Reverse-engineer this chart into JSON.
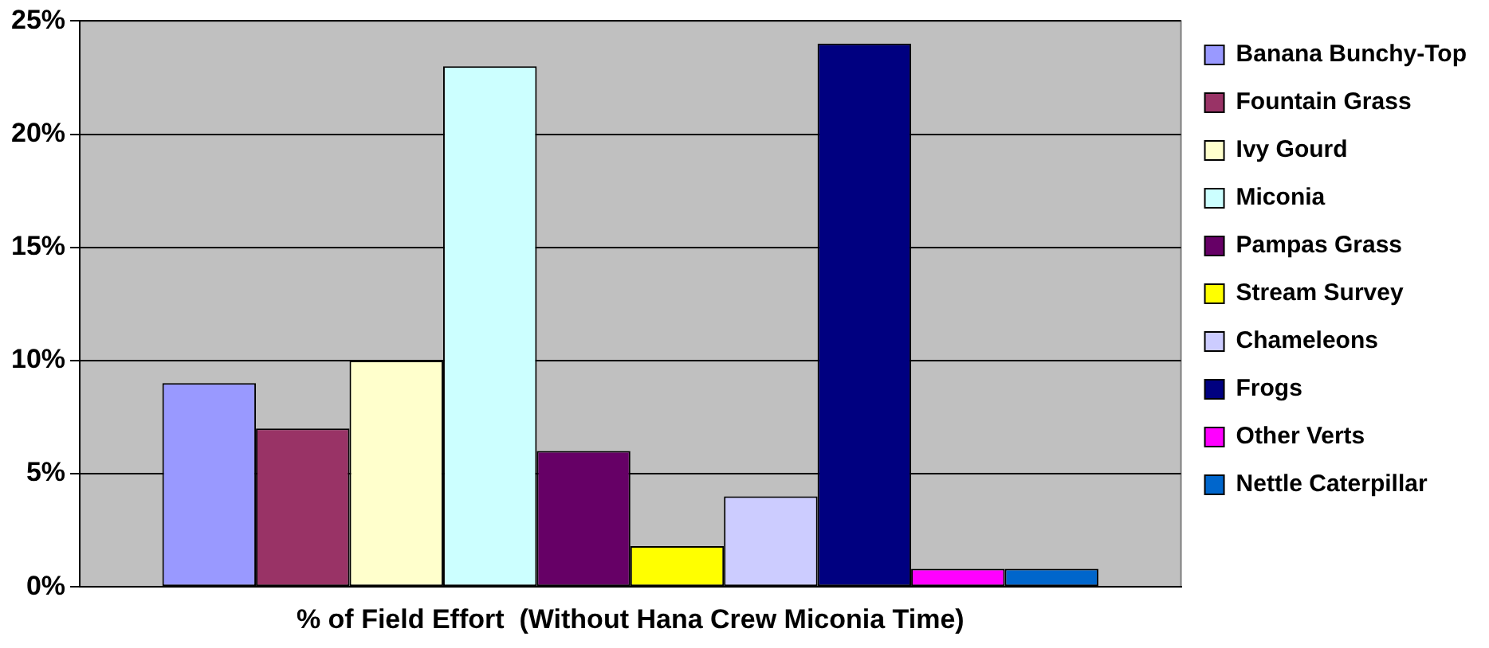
{
  "chart_data": {
    "type": "bar",
    "categories": [
      "% of Field Effort  (Without Hana Crew Miconia Time)"
    ],
    "series": [
      {
        "name": "Banana Bunchy-Top",
        "color": "#9999ff",
        "values": [
          9
        ]
      },
      {
        "name": "Fountain Grass",
        "color": "#993366",
        "values": [
          7
        ]
      },
      {
        "name": "Ivy Gourd",
        "color": "#ffffcc",
        "values": [
          10
        ]
      },
      {
        "name": "Miconia",
        "color": "#ccffff",
        "values": [
          23
        ]
      },
      {
        "name": "Pampas Grass",
        "color": "#660066",
        "values": [
          6
        ]
      },
      {
        "name": "Stream Survey",
        "color": "#ffff00",
        "values": [
          1.8
        ]
      },
      {
        "name": "Chameleons",
        "color": "#ccccff",
        "values": [
          4
        ]
      },
      {
        "name": "Frogs",
        "color": "#000080",
        "values": [
          24
        ]
      },
      {
        "name": "Other Verts",
        "color": "#ff00ff",
        "values": [
          0.8
        ]
      },
      {
        "name": "Nettle Caterpillar",
        "color": "#0066cc",
        "values": [
          0.8
        ]
      }
    ],
    "ylim": [
      0,
      25
    ],
    "yticks": [
      {
        "value": 0,
        "label": "0%"
      },
      {
        "value": 5,
        "label": "5%"
      },
      {
        "value": 10,
        "label": "10%"
      },
      {
        "value": 15,
        "label": "15%"
      },
      {
        "value": 20,
        "label": "20%"
      },
      {
        "value": 25,
        "label": "25%"
      }
    ],
    "grid": "y",
    "legend": "right"
  }
}
